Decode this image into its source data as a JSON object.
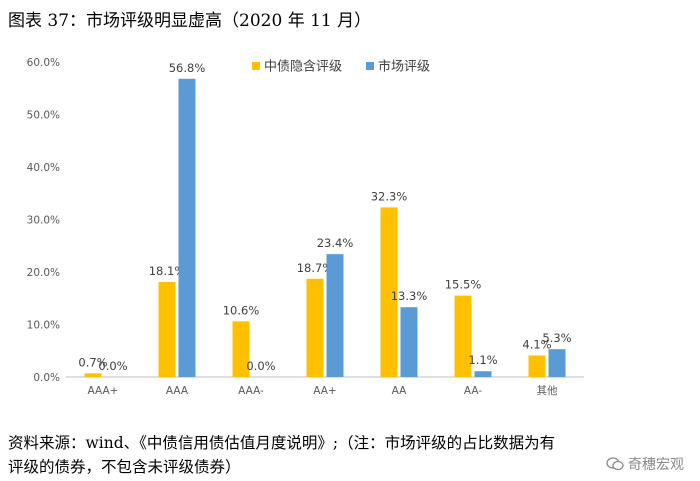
{
  "figure": {
    "title": "图表 37：市场评级明显虚高（2020 年 11 月）",
    "source_line1": "资料来源：wind、《中债信用债估值月度说明》;（注：市场评级的占比数据为有",
    "source_line2": "评级的债券，不包含未评级债券）",
    "watermark": "奇穗宏观"
  },
  "chart_data": {
    "type": "bar",
    "categories": [
      "AAA+",
      "AAA",
      "AAA-",
      "AA+",
      "AA",
      "AA-",
      "其他"
    ],
    "series": [
      {
        "name": "中债隐含评级",
        "color": "#FFC000",
        "values": [
          0.7,
          18.1,
          10.6,
          18.7,
          32.3,
          15.5,
          4.1
        ]
      },
      {
        "name": "市场评级",
        "color": "#5B9BD5",
        "values": [
          0.0,
          56.8,
          0.0,
          23.4,
          13.3,
          1.1,
          5.3
        ]
      }
    ],
    "ylim": [
      0,
      60
    ],
    "yticks": [
      0,
      10,
      20,
      30,
      40,
      50,
      60
    ],
    "ytick_labels": [
      "0.0%",
      "10.0%",
      "20.0%",
      "30.0%",
      "40.0%",
      "50.0%",
      "60.0%"
    ],
    "data_labels": [
      [
        "0.7%",
        "18.1%",
        "10.6%",
        "18.7%",
        "32.3%",
        "15.5%",
        "4.1%"
      ],
      [
        "0.0%",
        "56.8%",
        "0.0%",
        "23.4%",
        "13.3%",
        "1.1%",
        "5.3%"
      ]
    ],
    "legend_position": "top-right",
    "grid": false
  }
}
